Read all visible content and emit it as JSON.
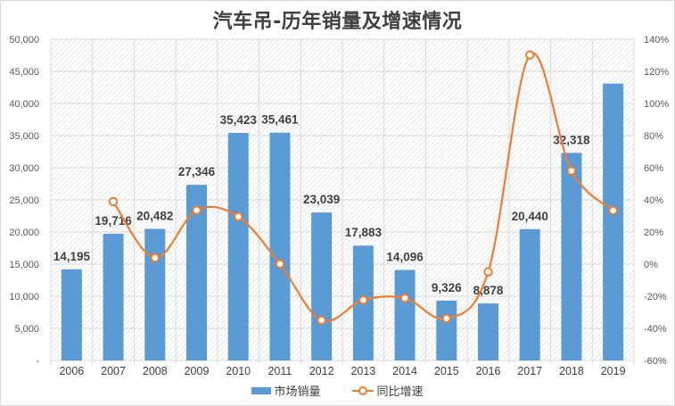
{
  "title": "汽车吊-历年销量及增速情况",
  "colors": {
    "bar": "#5b9bd5",
    "line": "#ed7d31",
    "grid": "#d9d9d9",
    "text": "#404040",
    "hatch": "#c8c8c8"
  },
  "legend": {
    "bar_label": "市场销量",
    "line_label": "同比增速"
  },
  "chart_data": {
    "type": "bar+line",
    "title": "汽车吊-历年销量及增速情况",
    "xlabel": "",
    "ylabel": "",
    "categories": [
      "2006",
      "2007",
      "2008",
      "2009",
      "2010",
      "2011",
      "2012",
      "2013",
      "2014",
      "2015",
      "2016",
      "2017",
      "2018",
      "2019"
    ],
    "series": [
      {
        "name": "市场销量",
        "type": "bar",
        "axis": "left",
        "values": [
          14195,
          19716,
          20482,
          27346,
          35423,
          35461,
          23039,
          17883,
          14096,
          9326,
          8878,
          20440,
          32318,
          43100
        ],
        "data_labels": [
          "14,195",
          "19,716",
          "20,482",
          "27,346",
          "35,423",
          "35,461",
          "23,039",
          "17,883",
          "14,096",
          "9,326",
          "8,878",
          "20,440",
          "32,318",
          ""
        ]
      },
      {
        "name": "同比增速",
        "type": "line",
        "axis": "right",
        "smooth": true,
        "values": [
          null,
          38.9,
          3.9,
          33.5,
          29.5,
          0.1,
          -35.0,
          -22.4,
          -21.2,
          -33.8,
          -4.8,
          130.2,
          58.1,
          33.4
        ]
      }
    ],
    "y_left": {
      "ylim": [
        0,
        50000
      ],
      "ticks": [
        "-",
        "5,000",
        "10,000",
        "15,000",
        "20,000",
        "25,000",
        "30,000",
        "35,000",
        "40,000",
        "45,000",
        "50,000"
      ]
    },
    "y_right": {
      "ylim": [
        -60,
        140
      ],
      "ticks": [
        "-60%",
        "-40%",
        "-20%",
        "0%",
        "20%",
        "40%",
        "60%",
        "80%",
        "100%",
        "120%",
        "140%"
      ]
    },
    "grid": true,
    "legend_position": "bottom"
  }
}
